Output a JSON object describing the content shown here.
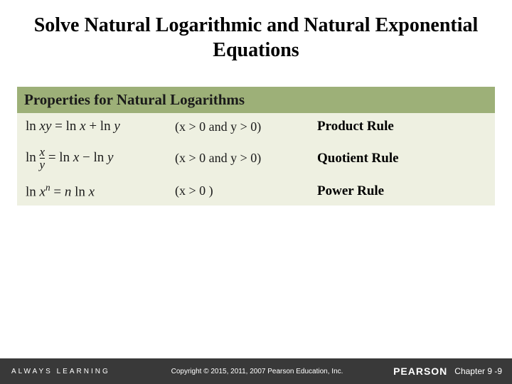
{
  "title": "Solve Natural Logarithmic and Natural Exponential Equations",
  "section_header": "Properties for Natural Logarithms",
  "rules": {
    "product": {
      "formula_html": "<span class='op'>ln </span>xy <span class='op'>= ln </span>x <span class='op'>+ ln </span>y",
      "condition": "(x > 0 and y > 0)",
      "name": "Product Rule"
    },
    "quotient": {
      "formula_html": "<span class='op'>ln </span><span class='frac'><span class='num'>x</span><span class='den'>y</span></span> <span class='op'>= ln </span>x <span class='op'>− ln </span>y",
      "condition": "(x > 0 and y > 0)",
      "name": "Quotient Rule"
    },
    "power": {
      "formula_html": "<span class='op'>ln </span>x<span class='sup'>n</span> <span class='op'>= </span>n <span class='op'>ln </span>x",
      "condition": "(x > 0 )",
      "name": "Power Rule"
    }
  },
  "footer": {
    "always_learning": "ALWAYS LEARNING",
    "copyright": "Copyright © 2015, 2011, 2007 Pearson Education, Inc.",
    "brand": "PEARSON",
    "chapter": "Chapter 9 -9"
  },
  "colors": {
    "header_bg": "#9db078",
    "table_bg": "#eef0e1",
    "footer_bg": "#393939"
  }
}
